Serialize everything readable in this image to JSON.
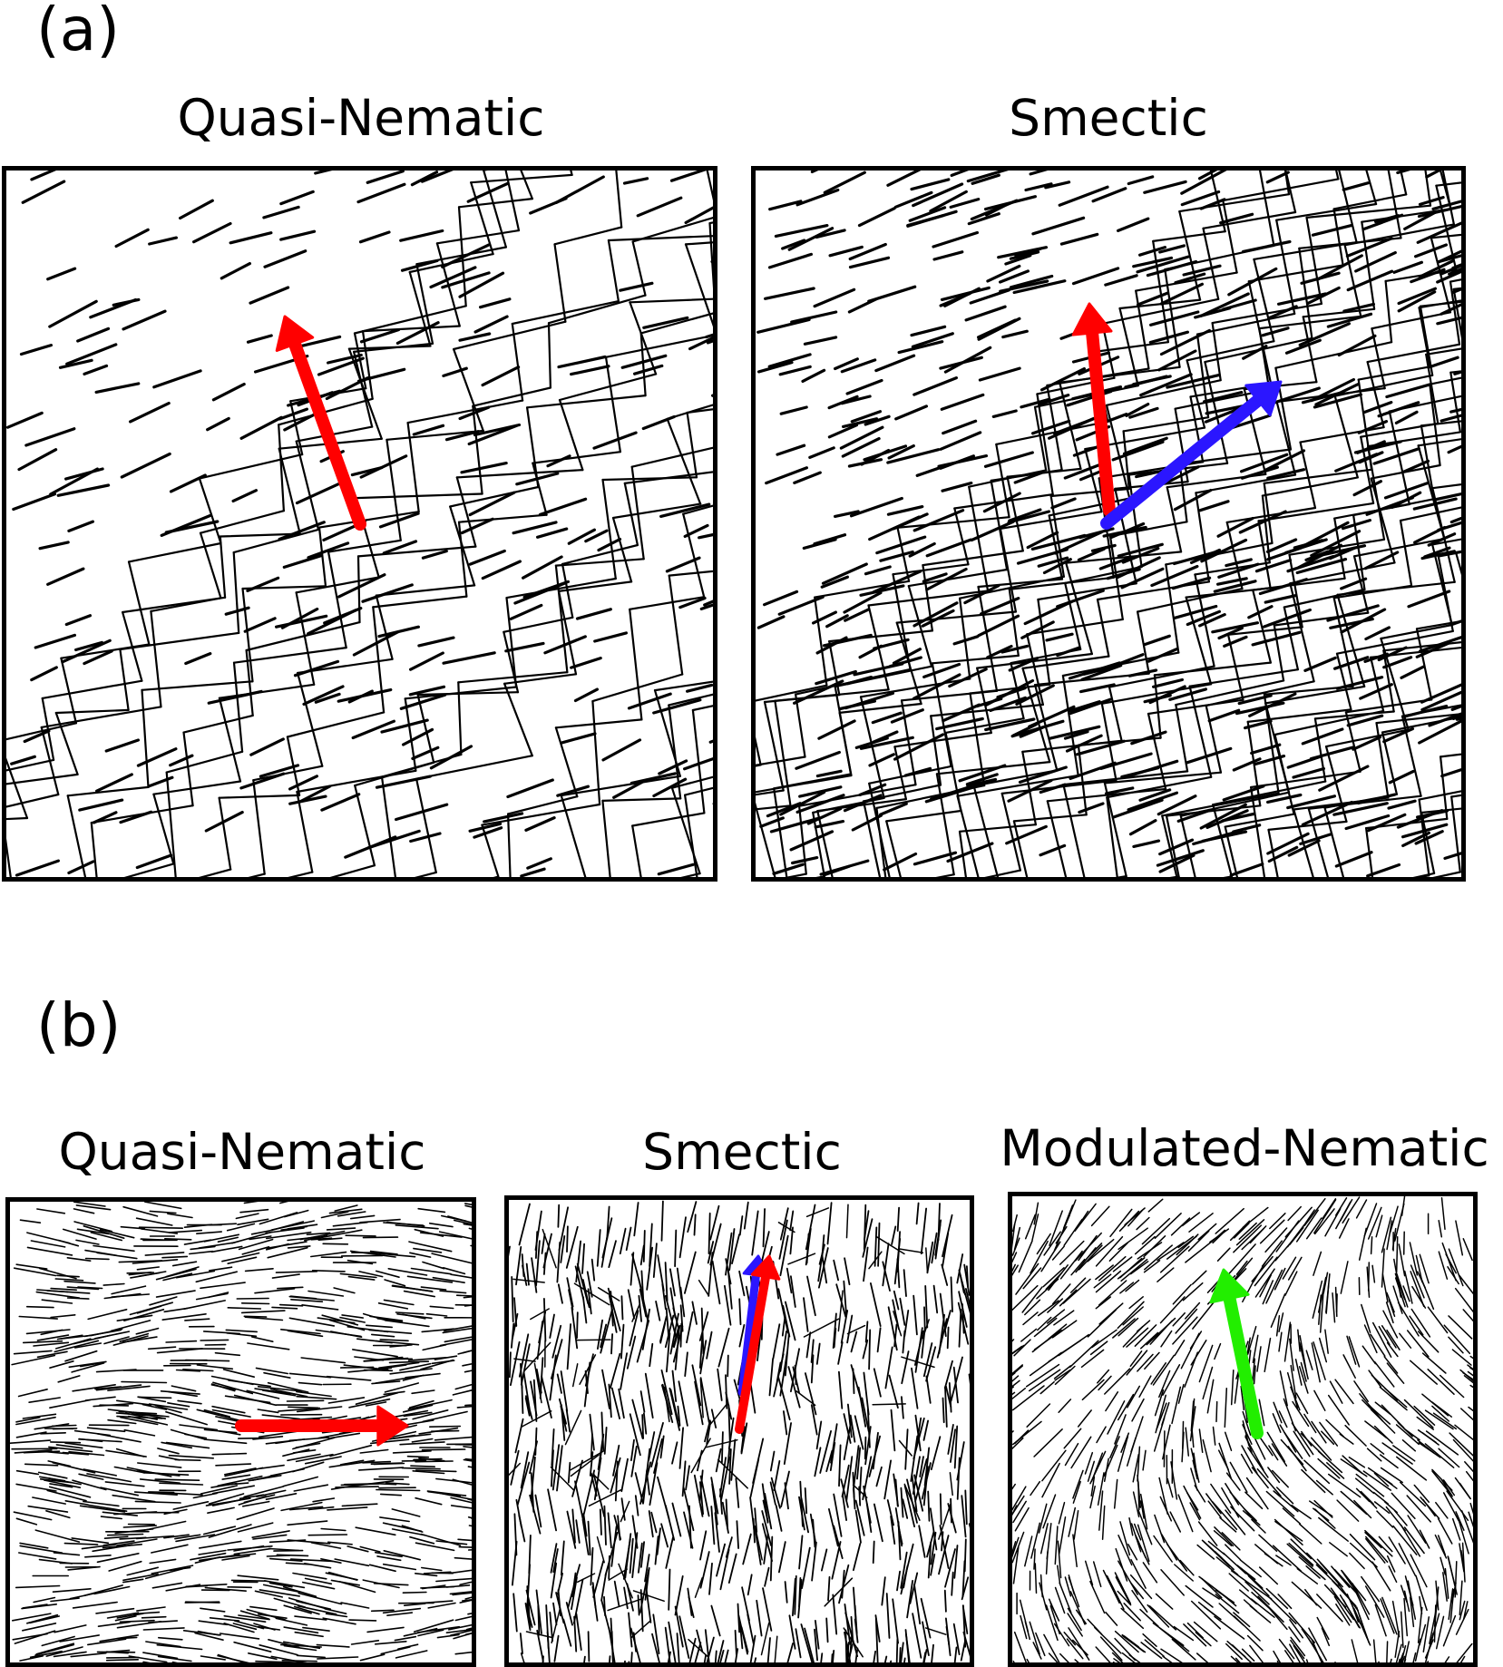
{
  "figure": {
    "part_a": {
      "label": "(a)",
      "panels": [
        {
          "title": "Quasi-Nematic",
          "style": "zigzag-sparse",
          "arrows": [
            {
              "color": "#ff0000"
            }
          ]
        },
        {
          "title": "Smectic",
          "style": "zigzag-dense",
          "arrows": [
            {
              "color": "#ff0000"
            },
            {
              "color": "#2b16ff"
            }
          ]
        }
      ]
    },
    "part_b": {
      "label": "(b)",
      "panels": [
        {
          "title": "Quasi-Nematic",
          "style": "horizontal-wavy",
          "arrows": [
            {
              "color": "#ff0000"
            }
          ]
        },
        {
          "title": "Smectic",
          "style": "vertical-layers",
          "arrows": [
            {
              "color": "#2b16ff"
            },
            {
              "color": "#ff0000"
            }
          ]
        },
        {
          "title": "Modulated-Nematic",
          "style": "chevron",
          "arrows": [
            {
              "color": "#22ee00"
            }
          ]
        }
      ]
    }
  }
}
